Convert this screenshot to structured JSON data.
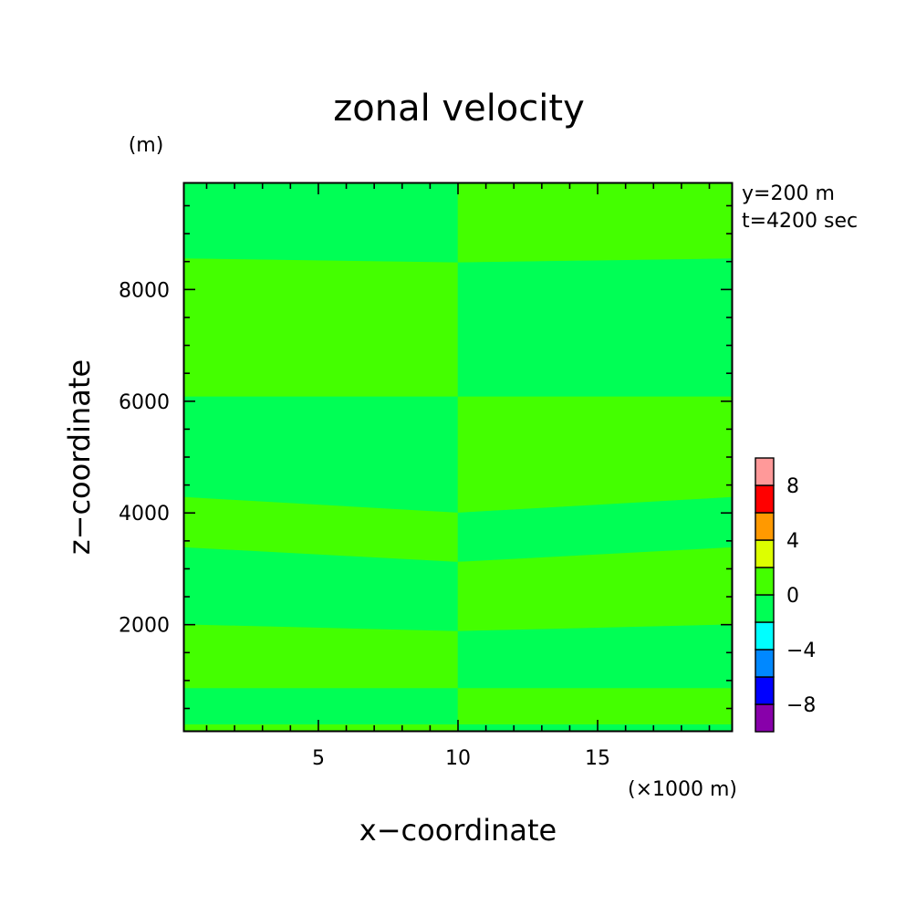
{
  "chart_data": {
    "type": "heatmap",
    "title": "zonal velocity",
    "xlabel": "x−coordinate",
    "ylabel": "z−coordinate",
    "x_unit": "(×1000 m)",
    "y_unit": "(m)",
    "info": [
      "y=200 m",
      "t=4200 sec"
    ],
    "xlim": [
      0.2,
      19.8
    ],
    "ylim": [
      100,
      9900
    ],
    "x_ticks": [
      {
        "value": 5,
        "label": "5"
      },
      {
        "value": 10,
        "label": "10"
      },
      {
        "value": 15,
        "label": "15"
      }
    ],
    "y_ticks": [
      {
        "value": 2000,
        "label": "2000"
      },
      {
        "value": 4000,
        "label": "4000"
      },
      {
        "value": 6000,
        "label": "6000"
      },
      {
        "value": 8000,
        "label": "8000"
      }
    ],
    "x_minor_step": 1,
    "y_minor_step": 500,
    "colors": {
      "band_minus4_0": "#00ff55",
      "band_0_4": "#44ff00"
    },
    "regions": [
      {
        "x_range": [
          0.2,
          10
        ],
        "bands": [
          {
            "z_bottom": 100,
            "z_top": 220,
            "level": "0_4"
          },
          {
            "z_bottom": 220,
            "z_top": 870,
            "level": "minus4_0"
          },
          {
            "z_bottom": 870,
            "z_top": 2010,
            "level": "0_4",
            "z_top_at_right": 1890
          },
          {
            "z_bottom": 2010,
            "z_top": 3390,
            "level": "minus4_0",
            "z_bottom_at_right": 1890,
            "z_top_at_right": 3130
          },
          {
            "z_bottom": 3390,
            "z_top": 4290,
            "level": "0_4",
            "z_bottom_at_right": 3130,
            "z_top_at_right": 4010
          },
          {
            "z_bottom": 4290,
            "z_top": 6090,
            "level": "minus4_0",
            "z_bottom_at_right": 4010
          },
          {
            "z_bottom": 6090,
            "z_top": 8560,
            "level": "0_4",
            "z_top_at_right": 8490
          },
          {
            "z_bottom": 8560,
            "z_top": 9900,
            "level": "minus4_0",
            "z_bottom_at_right": 8490
          }
        ]
      },
      {
        "x_range": [
          10,
          19.8
        ],
        "bands": [
          {
            "z_bottom": 100,
            "z_top": 220,
            "level": "minus4_0"
          },
          {
            "z_bottom": 220,
            "z_top": 870,
            "level": "0_4"
          },
          {
            "z_bottom": 870,
            "z_top": 2010,
            "level": "minus4_0",
            "z_top_at_left": 1890
          },
          {
            "z_bottom": 2010,
            "z_top": 3390,
            "level": "0_4",
            "z_bottom_at_left": 1890,
            "z_top_at_left": 3130
          },
          {
            "z_bottom": 3390,
            "z_top": 4290,
            "level": "minus4_0",
            "z_bottom_at_left": 3130,
            "z_top_at_left": 4010
          },
          {
            "z_bottom": 4290,
            "z_top": 6090,
            "level": "0_4",
            "z_bottom_at_left": 4010
          },
          {
            "z_bottom": 6090,
            "z_top": 8560,
            "level": "minus4_0",
            "z_top_at_left": 8490
          },
          {
            "z_bottom": 8560,
            "z_top": 9900,
            "level": "0_4",
            "z_bottom_at_left": 8490
          }
        ]
      }
    ],
    "colorbar": {
      "levels": [
        {
          "range": [
            -10,
            -8
          ],
          "color": "#8800aa"
        },
        {
          "range": [
            -8,
            -6
          ],
          "color": "#0000ff"
        },
        {
          "range": [
            -6,
            -4
          ],
          "color": "#0088ff"
        },
        {
          "range": [
            -4,
            -2
          ],
          "color": "#00ffff"
        },
        {
          "range": [
            -2,
            0
          ],
          "color": "#00ff55"
        },
        {
          "range": [
            0,
            2
          ],
          "color": "#44ff00"
        },
        {
          "range": [
            2,
            4
          ],
          "color": "#ddff00"
        },
        {
          "range": [
            4,
            6
          ],
          "color": "#ff9900"
        },
        {
          "range": [
            6,
            8
          ],
          "color": "#ff0000"
        },
        {
          "range": [
            8,
            10
          ],
          "color": "#ff9999"
        }
      ],
      "tick_labels": [
        {
          "value": 8,
          "label": "8"
        },
        {
          "value": 4,
          "label": "4"
        },
        {
          "value": 0,
          "label": "0"
        },
        {
          "value": -4,
          "label": "−4"
        },
        {
          "value": -8,
          "label": "−8"
        }
      ]
    }
  }
}
